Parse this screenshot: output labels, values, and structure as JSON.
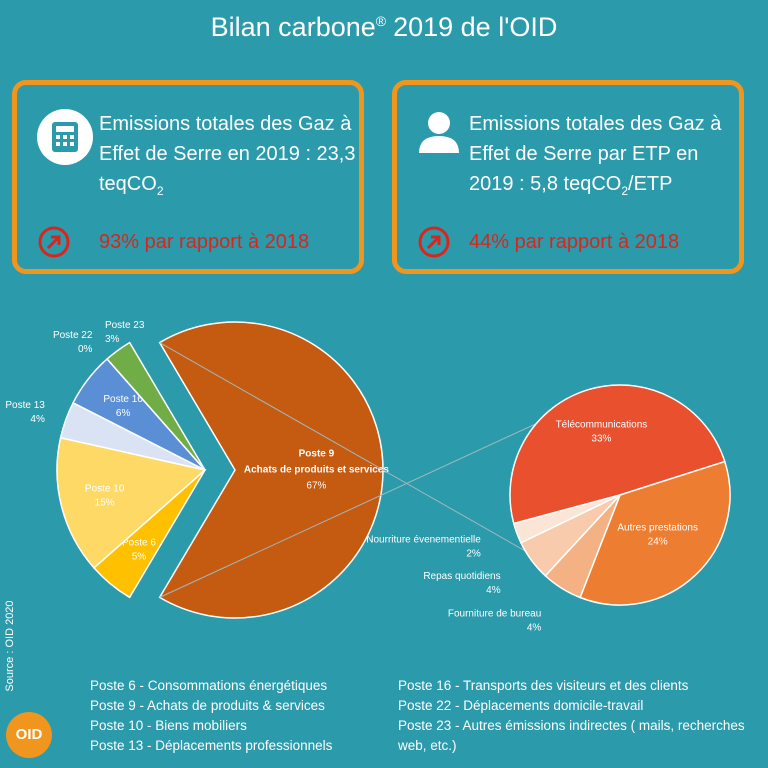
{
  "header": {
    "title": "Bilan carbone",
    "title_mark": "®",
    "title_end": "2019 de l'OID"
  },
  "cards": [
    {
      "text": "Emissions totales des Gaz à Effet de Serre en 2019 : 23,3 teqCO",
      "sub": "2",
      "change": "93% par rapport à 2018"
    },
    {
      "text": "Emissions totales des Gaz à Effet de Serre par ETP en 2019 : 5,8 teqCO",
      "sub": "2",
      "tail": "/ETP",
      "change": "44% par rapport à 2018"
    }
  ],
  "chart_data": {
    "type": "pie",
    "categories": [
      "Poste 6",
      "Poste 10",
      "Poste 13",
      "Poste 16",
      "Poste 22",
      "Poste 23",
      "Poste 9"
    ],
    "values": [
      5,
      15,
      4,
      6,
      0,
      3,
      67
    ],
    "value_labels": [
      "5%",
      "15%",
      "4%",
      "6%",
      "0%",
      "3%",
      "67%"
    ],
    "colors": [
      "#ffc000",
      "#ffd966",
      "#dae3f3",
      "#5b8fd5",
      "#a9a9a9",
      "#70ad47",
      "#c55a11"
    ],
    "exploded_description": "Achats de produits et services",
    "breakdown": {
      "categories": [
        "Télécommunications",
        "Autres prestations",
        "Fourniture de bureau",
        "Repas quotidiens",
        "Nourriture évenementielle"
      ],
      "values": [
        33,
        24,
        4,
        4,
        2
      ],
      "value_labels": [
        "33%",
        "24%",
        "4%",
        "4%",
        "2%"
      ],
      "colors": [
        "#e8502e",
        "#ed7d31",
        "#f4b183",
        "#f8cbad",
        "#fbe5d6"
      ]
    }
  },
  "legend_notes": [
    "Poste 6 - Consommations énergétiques",
    "Poste 9 - Achats de produits & services",
    "Poste 10 - Biens mobiliers",
    "Poste 13 - Déplacements professionnels",
    "Poste 16 - Transports des visiteurs et des clients",
    "Poste 22 - Déplacements domicile-travail",
    "Poste 23 - Autres émissions indirectes ( mails, recherches web, etc.)"
  ],
  "source": "Source : OID 2020",
  "logo": "OID"
}
